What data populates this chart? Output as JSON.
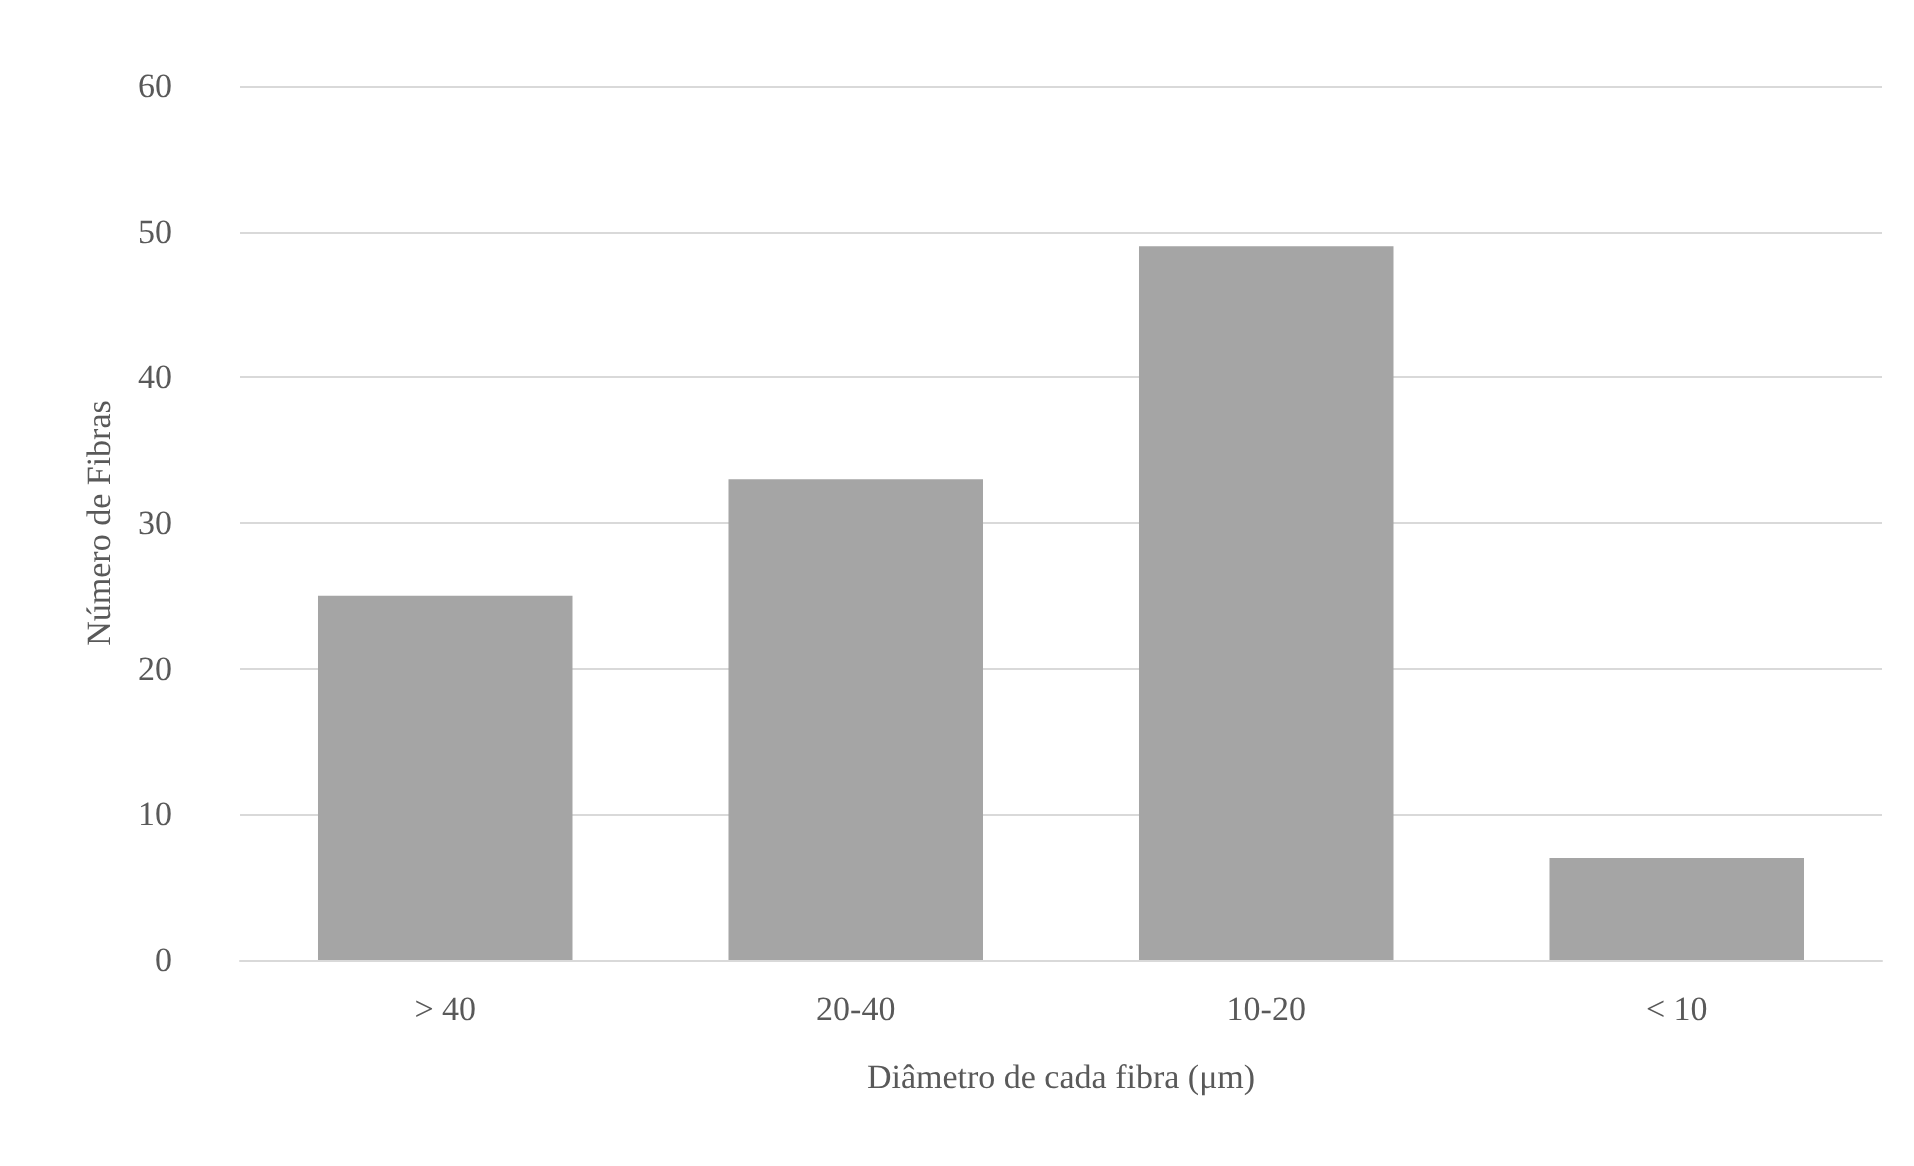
{
  "chart_data": {
    "type": "bar",
    "xlabel": "Diâmetro de cada fibra (μm)",
    "ylabel": "Número de Fibras",
    "categories": [
      "> 40",
      "20-40",
      "10-20",
      "< 10"
    ],
    "values": [
      25,
      33,
      49,
      7
    ],
    "color": "#a5a5a5",
    "ylim": [
      0,
      60
    ],
    "yticks": [
      0,
      10,
      20,
      30,
      40,
      50,
      60
    ],
    "grid": "y"
  }
}
